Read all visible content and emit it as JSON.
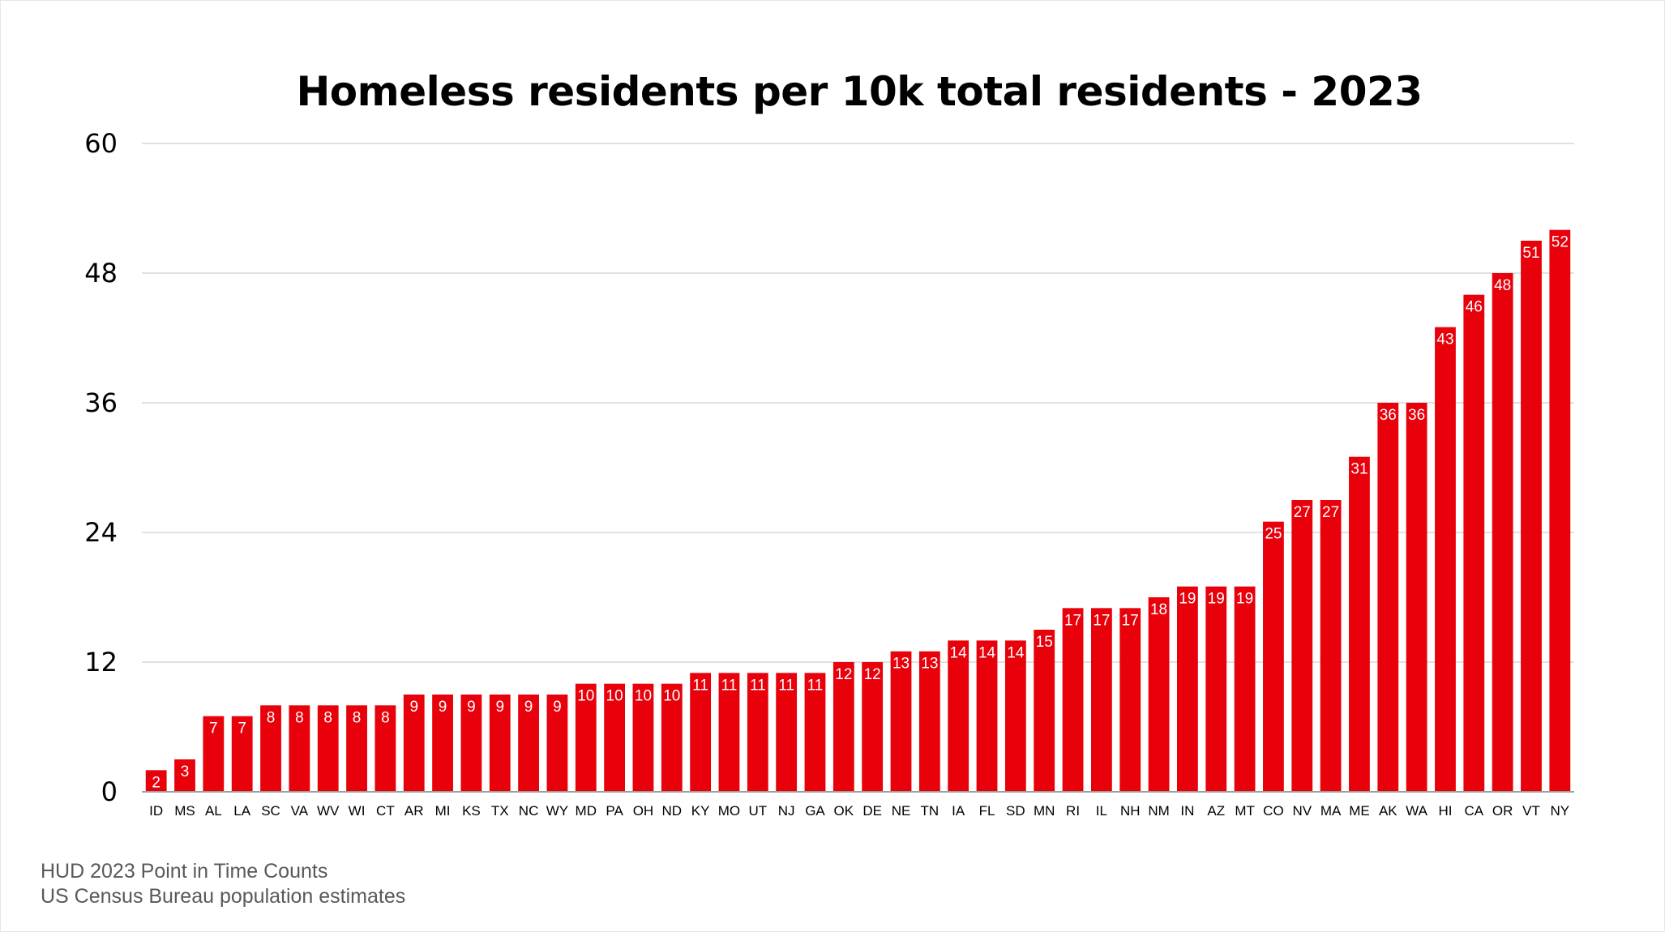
{
  "chart_data": {
    "type": "bar",
    "title": "Homeless residents per 10k total residents - 2023",
    "xlabel": "",
    "ylabel": "",
    "ylim": [
      0,
      60
    ],
    "yticks": [
      0,
      12,
      24,
      36,
      48,
      60
    ],
    "grid": true,
    "legend": "none",
    "categories": [
      "ID",
      "MS",
      "AL",
      "LA",
      "SC",
      "VA",
      "WV",
      "WI",
      "CT",
      "AR",
      "MI",
      "KS",
      "TX",
      "NC",
      "WY",
      "MD",
      "PA",
      "OH",
      "ND",
      "KY",
      "MO",
      "UT",
      "NJ",
      "GA",
      "OK",
      "DE",
      "NE",
      "TN",
      "IA",
      "FL",
      "SD",
      "MN",
      "RI",
      "IL",
      "NH",
      "NM",
      "IN",
      "AZ",
      "MT",
      "CO",
      "NV",
      "MA",
      "ME",
      "AK",
      "WA",
      "HI",
      "CA",
      "OR",
      "VT",
      "NY"
    ],
    "values": [
      2,
      3,
      7,
      7,
      8,
      8,
      8,
      8,
      8,
      9,
      9,
      9,
      9,
      9,
      9,
      10,
      10,
      10,
      10,
      11,
      11,
      11,
      11,
      11,
      12,
      12,
      13,
      13,
      14,
      14,
      14,
      15,
      17,
      17,
      17,
      18,
      19,
      19,
      19,
      25,
      27,
      27,
      31,
      36,
      36,
      43,
      46,
      48,
      51,
      52
    ],
    "data_labels": true,
    "colors": {
      "bar": "#e8000b",
      "grid": "#cfcfcf",
      "axis": "#9e9e9e",
      "label_text": "#ffffff"
    }
  },
  "footer": {
    "source_line_1": "HUD 2023 Point in Time Counts",
    "source_line_2": "US Census Bureau population estimates"
  }
}
